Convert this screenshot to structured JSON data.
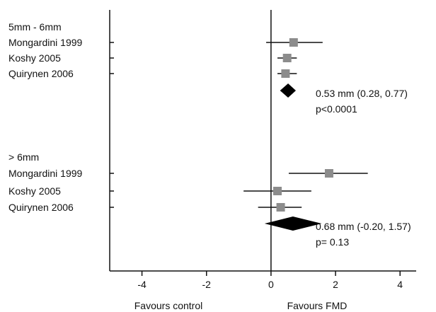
{
  "chart_data": {
    "type": "forest",
    "xlim": [
      -5,
      4.5
    ],
    "x_ticks": [
      -4,
      -2,
      0,
      2,
      4
    ],
    "xlabel_left": "Favours control",
    "xlabel_right": "Favours FMD",
    "groups": [
      {
        "heading": "5mm - 6mm",
        "studies": [
          {
            "name": "Mongardini 1999",
            "estimate": 0.7,
            "lower": -0.15,
            "upper": 1.6
          },
          {
            "name": "Koshy 2005",
            "estimate": 0.5,
            "lower": 0.2,
            "upper": 0.8
          },
          {
            "name": "Quirynen 2006",
            "estimate": 0.45,
            "lower": 0.2,
            "upper": 0.8
          }
        ],
        "pooled": {
          "estimate": 0.53,
          "lower": 0.28,
          "upper": 0.77
        },
        "summary_text": "0.53 mm (0.28, 0.77)",
        "p_text": "p<0.0001"
      },
      {
        "heading": "> 6mm",
        "studies": [
          {
            "name": "Mongardini 1999",
            "estimate": 1.8,
            "lower": 0.55,
            "upper": 3.0
          },
          {
            "name": "Koshy 2005",
            "estimate": 0.2,
            "lower": -0.85,
            "upper": 1.25
          },
          {
            "name": "Quirynen 2006",
            "estimate": 0.3,
            "lower": -0.4,
            "upper": 0.95
          }
        ],
        "pooled": {
          "estimate": 0.68,
          "lower": -0.2,
          "upper": 1.57
        },
        "summary_text": "0.68 mm (-0.20, 1.57)",
        "p_text": "p= 0.13"
      }
    ],
    "colors": {
      "square": "#8c8c8c",
      "line": "#111111",
      "diamond": "#000000"
    }
  }
}
